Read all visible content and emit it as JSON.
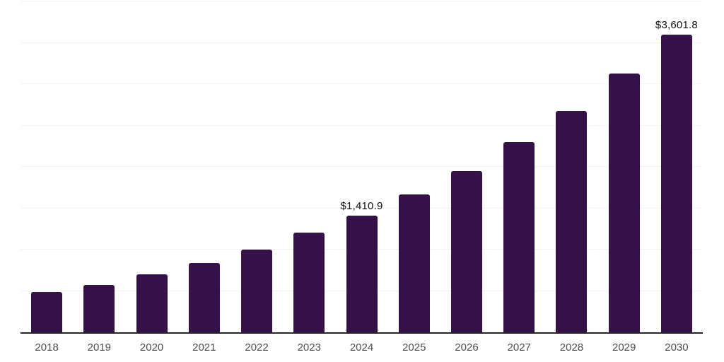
{
  "chart_data": {
    "type": "bar",
    "title": "",
    "xlabel": "",
    "ylabel": "",
    "categories": [
      "2018",
      "2019",
      "2020",
      "2021",
      "2022",
      "2023",
      "2024",
      "2025",
      "2026",
      "2027",
      "2028",
      "2029",
      "2030"
    ],
    "values": [
      485,
      572,
      700,
      836,
      1003,
      1205,
      1410.9,
      1666,
      1950,
      2299,
      2675,
      3125,
      3601.8
    ],
    "data_labels": [
      "",
      "",
      "",
      "",
      "",
      "",
      "$1,410.9",
      "",
      "",
      "",
      "",
      "",
      "$3,601.8"
    ],
    "ylim": [
      0,
      4000
    ],
    "gridline_step": 500,
    "grid": "horizontal-only",
    "legend": "none",
    "y_axis_tick_labels_visible": false
  },
  "colors": {
    "bar": "#35114A",
    "axis_line": "#262626",
    "gridline": "#F2F2F2",
    "tick_label": "#4D4D4D",
    "data_label": "#121212",
    "background": "#FFFFFF"
  }
}
